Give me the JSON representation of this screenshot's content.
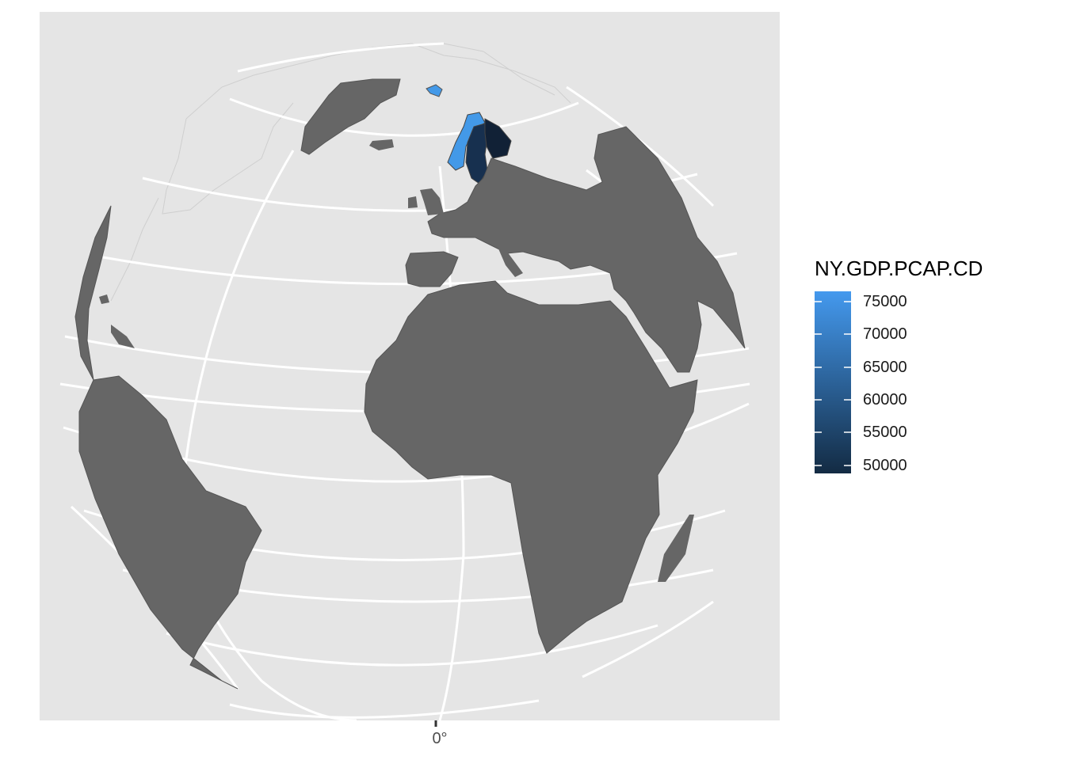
{
  "map": {
    "projection": "orthographic",
    "highlighted_countries": [
      {
        "name": "Norway",
        "color": "#4399e8"
      },
      {
        "name": "Iceland",
        "color": "#4399e8"
      },
      {
        "name": "Sweden",
        "color": "#17304f"
      },
      {
        "name": "Finland",
        "color": "#112136"
      }
    ],
    "land_color": "#666666",
    "panel_color": "#e5e5e5",
    "graticule_color": "#ffffff"
  },
  "axis": {
    "x_tick_label": "0°"
  },
  "legend": {
    "title": "NY.GDP.PCAP.CD",
    "ticks": [
      "75000",
      "70000",
      "65000",
      "60000",
      "55000",
      "50000"
    ],
    "gradient_top_color": "#4499ee",
    "gradient_bottom_color": "#132b43"
  }
}
